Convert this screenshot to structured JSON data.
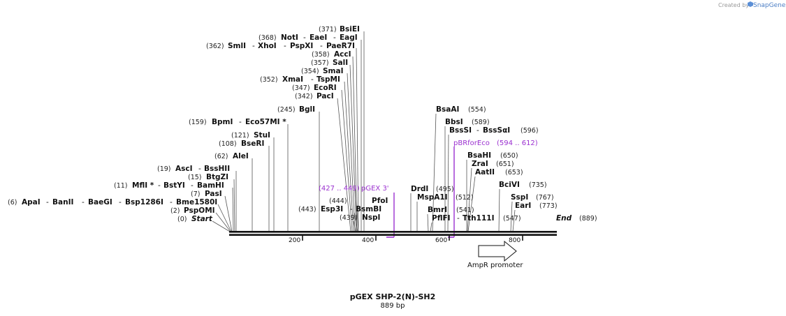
{
  "credit": {
    "text": "Created by",
    "brand": "SnapGene"
  },
  "plasmid": {
    "name": "pGEX SHP-2(N)-SH2",
    "length_label": "889 bp"
  },
  "ruler": {
    "ticks": [
      "200",
      "400",
      "600",
      "800"
    ]
  },
  "feature": {
    "name": "AmpR promoter"
  },
  "primers": [
    {
      "pos": "(427 .. 449)",
      "name": "pGEX 3'"
    },
    {
      "name": "pBRforEco",
      "pos": "(594 .. 612)"
    }
  ],
  "left_labels": [
    {
      "pos": "(371)",
      "parts": [
        "BsiEI"
      ]
    },
    {
      "pos": "(368)",
      "parts": [
        "NotI",
        "EaeI",
        "EagI"
      ]
    },
    {
      "pos": "(362)",
      "parts": [
        "SmlI",
        "XhoI",
        "PspXI",
        "PaeR7I"
      ]
    },
    {
      "pos": "(358)",
      "parts": [
        "AccI"
      ]
    },
    {
      "pos": "(357)",
      "parts": [
        "SalI"
      ]
    },
    {
      "pos": "(354)",
      "parts": [
        "SmaI"
      ]
    },
    {
      "pos": "(352)",
      "parts": [
        "XmaI",
        "TspMI"
      ]
    },
    {
      "pos": "(347)",
      "parts": [
        "EcoRI"
      ]
    },
    {
      "pos": "(342)",
      "parts": [
        "PacI"
      ]
    },
    {
      "pos": "(245)",
      "parts": [
        "BglI"
      ]
    },
    {
      "pos": "(159)",
      "parts": [
        "BpmI",
        "Eco57MI *"
      ]
    },
    {
      "pos": "(121)",
      "parts": [
        "StuI"
      ]
    },
    {
      "pos": "(108)",
      "parts": [
        "BseRI"
      ]
    },
    {
      "pos": "(62)",
      "parts": [
        "AleI"
      ]
    },
    {
      "pos": "(19)",
      "parts": [
        "AscI",
        "BssHII"
      ]
    },
    {
      "pos": "(15)",
      "parts": [
        "BtgZI"
      ]
    },
    {
      "pos": "(11)",
      "parts": [
        "MflI *",
        "BstYI",
        "BamHI"
      ]
    },
    {
      "pos": "(7)",
      "parts": [
        "PasI"
      ]
    },
    {
      "pos": "(6)",
      "parts": [
        "ApaI",
        "BanII",
        "BaeGI",
        "Bsp1286I",
        "Bme1580I"
      ]
    },
    {
      "pos": "(2)",
      "parts": [
        "PspOMI"
      ]
    },
    {
      "pos": "(0)",
      "parts": [
        "Start"
      ]
    },
    {
      "pos": "(444)",
      "parts": [
        "PfoI"
      ]
    },
    {
      "pos": "(443)",
      "parts": [
        "Esp3I",
        "BsmBI"
      ]
    },
    {
      "pos": "(439)",
      "parts": [
        "NspI"
      ]
    }
  ],
  "right_labels": [
    {
      "parts": [
        "BsaAI"
      ],
      "pos": "(554)"
    },
    {
      "parts": [
        "BbsI"
      ],
      "pos": "(589)"
    },
    {
      "parts": [
        "BssSI",
        "BssSαI"
      ],
      "pos": "(596)"
    },
    {
      "parts": [
        "BsaHI"
      ],
      "pos": "(650)"
    },
    {
      "parts": [
        "ZraI"
      ],
      "pos": "(651)"
    },
    {
      "parts": [
        "AatII"
      ],
      "pos": "(653)"
    },
    {
      "parts": [
        "BciVI"
      ],
      "pos": "(735)"
    },
    {
      "parts": [
        "SspI"
      ],
      "pos": "(767)"
    },
    {
      "parts": [
        "EarI"
      ],
      "pos": "(773)"
    },
    {
      "parts": [
        "DrdI"
      ],
      "pos": "(495)"
    },
    {
      "parts": [
        "MspA1I"
      ],
      "pos": "(512)"
    },
    {
      "parts": [
        "BmrI"
      ],
      "pos": "(541)"
    },
    {
      "parts": [
        "PflFI",
        "Tth111I"
      ],
      "pos": "(547)"
    },
    {
      "parts": [
        "End"
      ],
      "pos": "(889)"
    }
  ]
}
